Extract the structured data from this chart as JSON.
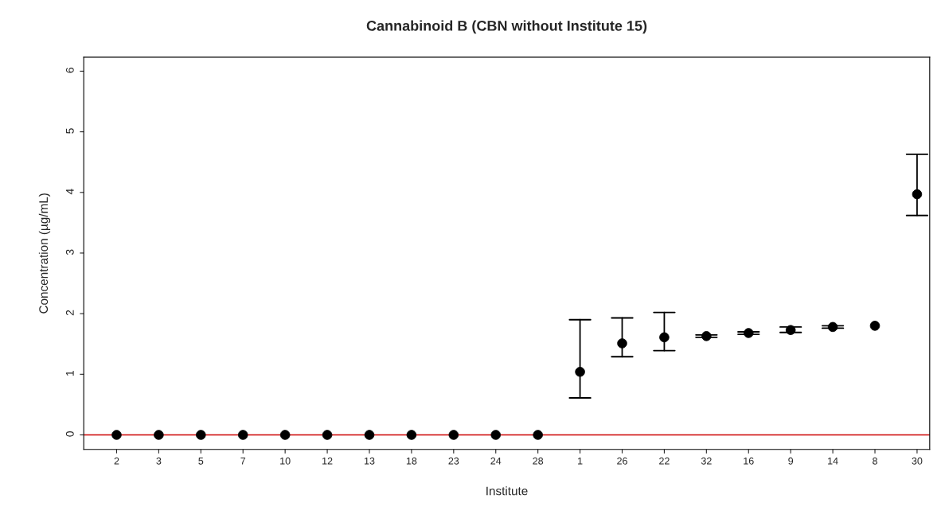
{
  "chart_data": {
    "type": "scatter",
    "title": "Cannabinoid B (CBN without Institute 15)",
    "xlabel": "Institute",
    "ylabel": "Concentration (µg/mL)",
    "categories": [
      "2",
      "3",
      "5",
      "7",
      "10",
      "12",
      "13",
      "18",
      "23",
      "24",
      "28",
      "1",
      "26",
      "22",
      "32",
      "16",
      "9",
      "14",
      "8",
      "30"
    ],
    "series": [
      {
        "color": "#000000",
        "values": [
          0,
          0,
          0,
          0,
          0,
          0,
          0,
          0,
          0,
          0,
          0,
          1.04,
          1.51,
          1.61,
          1.63,
          1.68,
          1.73,
          1.78,
          1.8,
          3.97
        ],
        "errors": [
          null,
          null,
          null,
          null,
          null,
          null,
          null,
          null,
          null,
          null,
          null,
          [
            0.61,
            1.9
          ],
          [
            1.29,
            1.93
          ],
          [
            1.39,
            2.02
          ],
          [
            1.61,
            1.65
          ],
          [
            1.66,
            1.7
          ],
          [
            1.69,
            1.78
          ],
          [
            1.76,
            1.8
          ],
          null,
          [
            3.62,
            4.63
          ]
        ]
      }
    ],
    "ylim": [
      -0.24,
      6.23
    ],
    "yticks": [
      0,
      1,
      2,
      3,
      4,
      5,
      6
    ],
    "ref_lines": [
      {
        "axis": "y",
        "value": 0,
        "color": "#cc0000"
      }
    ],
    "marker": "circle",
    "grid": false
  }
}
